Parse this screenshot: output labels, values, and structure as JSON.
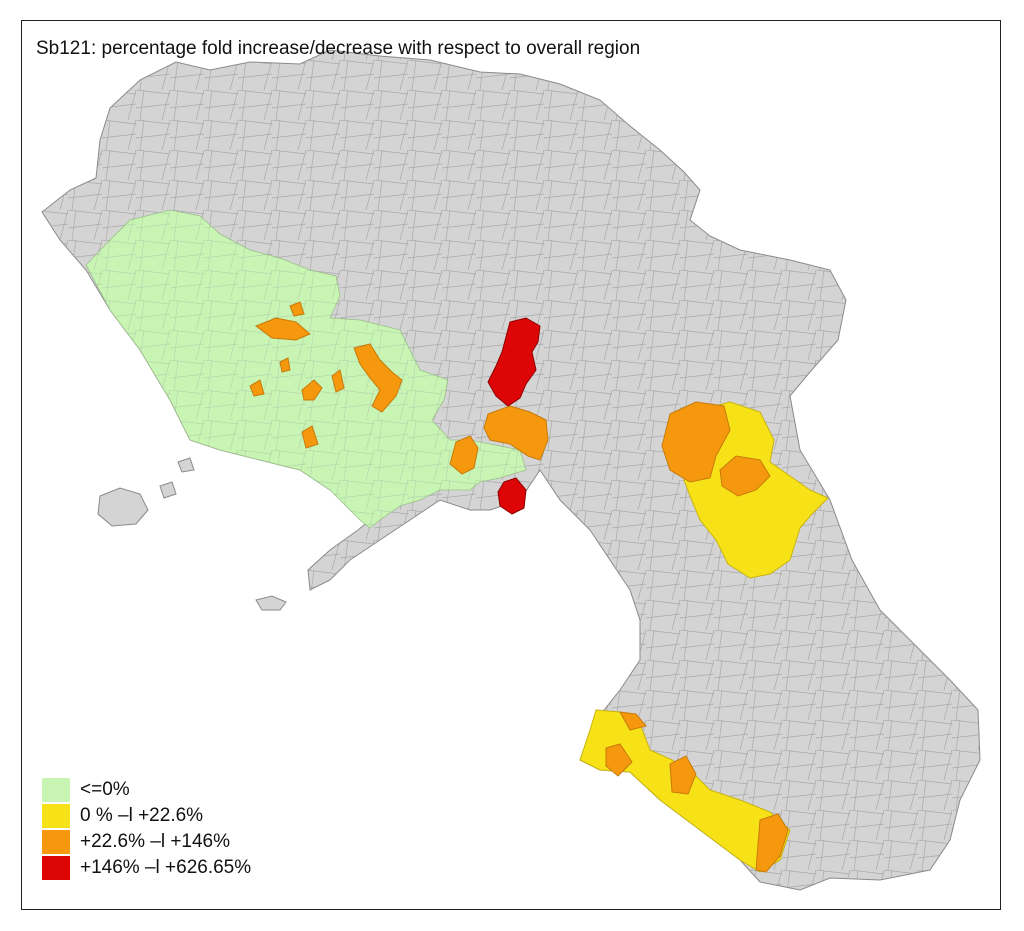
{
  "title": "Sb121: percentage fold increase/decrease with respect to overall region",
  "colors": {
    "background_region": "#d4d4d4",
    "border": "#8a8a8a",
    "sea": "#ffffff"
  },
  "legend": [
    {
      "label": "<=0%",
      "color": "#c8f5b4"
    },
    {
      "label": "0 % –l +22.6%",
      "color": "#f7e217"
    },
    {
      "label": "+22.6% –l +146%",
      "color": "#f5980d"
    },
    {
      "label": "+146% –l +626.65%",
      "color": "#dd0505"
    }
  ]
}
